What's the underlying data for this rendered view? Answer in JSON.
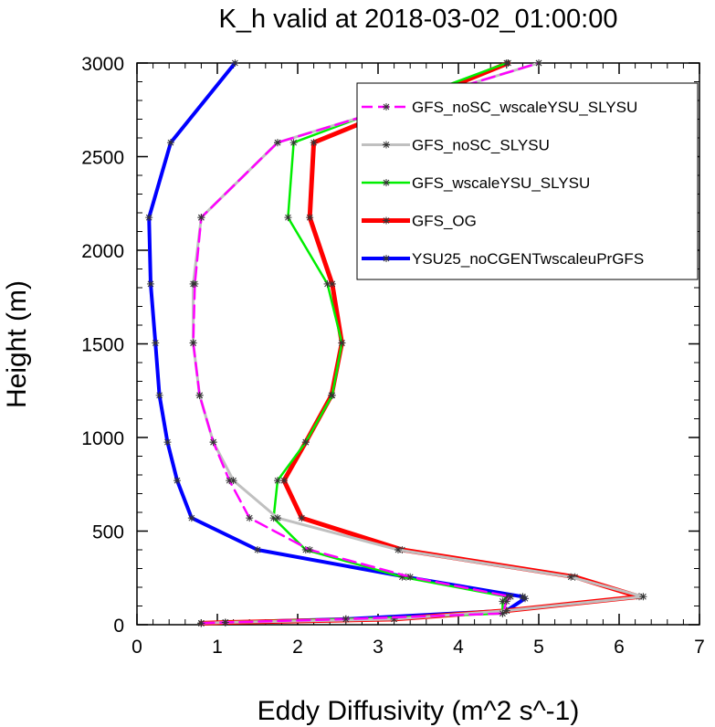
{
  "chart_data": {
    "type": "line",
    "title": "K_h valid at 2018-03-02_01:00:00",
    "xlabel": "Eddy Diffusivity (m^2 s^-1)",
    "ylabel": "Height (m)",
    "xlim": [
      0,
      7
    ],
    "ylim": [
      0,
      3000
    ],
    "xticks": [
      "0",
      "1",
      "2",
      "3",
      "4",
      "5",
      "6",
      "7"
    ],
    "yticks": [
      "0",
      "500",
      "1000",
      "1500",
      "2000",
      "2500",
      "3000"
    ],
    "grid": false,
    "legend_position": "top-right",
    "marker": "asterisk",
    "series": [
      {
        "name": "YSU25_noCGENTwscaleuPrGFS",
        "color": "#0000ff",
        "dash": "solid",
        "width": 4,
        "x": [
          0.8,
          1.1,
          2.6,
          4.6,
          4.83,
          4.8,
          3.35,
          1.5,
          0.68,
          0.5,
          0.38,
          0.28,
          0.23,
          0.17,
          0.15,
          0.42,
          1.22
        ],
        "y": [
          8,
          12,
          30,
          75,
          140,
          150,
          255,
          400,
          570,
          770,
          975,
          1225,
          1505,
          1820,
          2175,
          2575,
          3000
        ]
      },
      {
        "name": "GFS_OG",
        "color": "#ff0000",
        "dash": "solid",
        "width": 5,
        "x": [
          0.8,
          1.1,
          3.2,
          4.6,
          6.25,
          5.45,
          3.3,
          2.05,
          1.83,
          2.1,
          2.42,
          2.55,
          2.43,
          2.15,
          2.2,
          4.62
        ],
        "y": [
          8,
          12,
          30,
          75,
          150,
          255,
          400,
          570,
          770,
          975,
          1225,
          1505,
          1820,
          2175,
          2575,
          3000
        ]
      },
      {
        "name": "GFS_wscaleYSU_SLYSU",
        "color": "#00ee00",
        "dash": "solid",
        "width": 2.5,
        "x": [
          0.8,
          1.1,
          2.6,
          4.55,
          4.55,
          4.6,
          3.3,
          2.1,
          1.7,
          1.75,
          2.1,
          2.43,
          2.55,
          2.37,
          1.88,
          1.95,
          4.6
        ],
        "y": [
          8,
          12,
          30,
          60,
          125,
          150,
          255,
          400,
          570,
          770,
          975,
          1225,
          1505,
          1820,
          2175,
          2575,
          3000
        ]
      },
      {
        "name": "GFS_noSC_SLYSU",
        "color": "#c0c0c0",
        "dash": "solid",
        "width": 3,
        "x": [
          0.8,
          1.1,
          3.2,
          4.6,
          6.3,
          5.4,
          3.25,
          1.75,
          1.2,
          0.95,
          0.78,
          0.7,
          0.7,
          0.8,
          1.75,
          5.0
        ],
        "y": [
          8,
          12,
          30,
          75,
          150,
          255,
          400,
          570,
          770,
          975,
          1225,
          1505,
          1820,
          2175,
          2575,
          3000
        ]
      },
      {
        "name": "GFS_noSC_wscaleYSU_SLYSU",
        "color": "#ff00ff",
        "dash": "dashed",
        "width": 2.5,
        "x": [
          0.8,
          1.1,
          2.6,
          4.55,
          4.6,
          4.65,
          3.4,
          2.15,
          1.4,
          1.15,
          0.95,
          0.78,
          0.7,
          0.72,
          0.8,
          1.75,
          5.0
        ],
        "y": [
          8,
          12,
          30,
          60,
          125,
          150,
          255,
          400,
          570,
          770,
          975,
          1225,
          1505,
          1820,
          2175,
          2575,
          3000
        ]
      }
    ],
    "legend_order": [
      "GFS_noSC_wscaleYSU_SLYSU",
      "GFS_noSC_SLYSU",
      "GFS_wscaleYSU_SLYSU",
      "GFS_OG",
      "YSU25_noCGENTwscaleuPrGFS"
    ]
  }
}
